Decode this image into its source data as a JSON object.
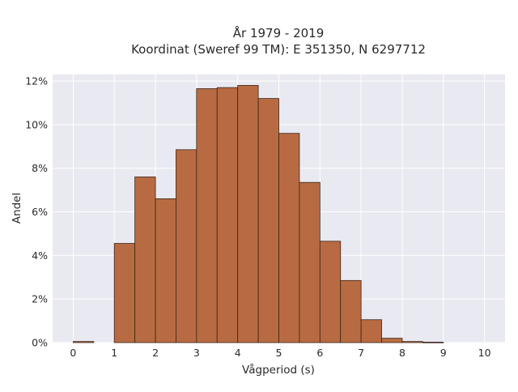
{
  "chart_data": {
    "type": "bar",
    "title_lines": [
      "År 1979 - 2019",
      "Koordinat (Sweref 99 TM): E 351350, N 6297712"
    ],
    "xlabel": "Vågperiod (s)",
    "ylabel": "Andel",
    "xlim": [
      -0.5,
      10.5
    ],
    "ylim": [
      0,
      12.3
    ],
    "x_ticks": [
      "0",
      "1",
      "2",
      "3",
      "4",
      "5",
      "6",
      "7",
      "8",
      "9",
      "10"
    ],
    "y_ticks": [
      "0%",
      "2%",
      "4%",
      "6%",
      "8%",
      "10%",
      "12%"
    ],
    "y_tick_values": [
      0,
      2,
      4,
      6,
      8,
      10,
      12
    ],
    "bin_width": 0.5,
    "bins": [
      {
        "start": 0.0,
        "end": 0.5,
        "value": 0.05
      },
      {
        "start": 0.5,
        "end": 1.0,
        "value": 0.0
      },
      {
        "start": 1.0,
        "end": 1.5,
        "value": 4.55
      },
      {
        "start": 1.5,
        "end": 2.0,
        "value": 7.6
      },
      {
        "start": 2.0,
        "end": 2.5,
        "value": 6.6
      },
      {
        "start": 2.5,
        "end": 3.0,
        "value": 8.85
      },
      {
        "start": 3.0,
        "end": 3.5,
        "value": 11.65
      },
      {
        "start": 3.5,
        "end": 4.0,
        "value": 11.7
      },
      {
        "start": 4.0,
        "end": 4.5,
        "value": 11.8
      },
      {
        "start": 4.5,
        "end": 5.0,
        "value": 11.2
      },
      {
        "start": 5.0,
        "end": 5.5,
        "value": 9.6
      },
      {
        "start": 5.5,
        "end": 6.0,
        "value": 7.35
      },
      {
        "start": 6.0,
        "end": 6.5,
        "value": 4.65
      },
      {
        "start": 6.5,
        "end": 7.0,
        "value": 2.85
      },
      {
        "start": 7.0,
        "end": 7.5,
        "value": 1.05
      },
      {
        "start": 7.5,
        "end": 8.0,
        "value": 0.2
      },
      {
        "start": 8.0,
        "end": 8.5,
        "value": 0.05
      },
      {
        "start": 8.5,
        "end": 9.0,
        "value": 0.02
      },
      {
        "start": 9.0,
        "end": 9.5,
        "value": 0.0
      },
      {
        "start": 9.5,
        "end": 10.0,
        "value": 0.0
      }
    ],
    "grid": true,
    "colors": {
      "bar_fill": "#b86b42",
      "bar_edge": "#3a2418",
      "plot_background": "#e9e9f1",
      "grid": "#ffffff"
    }
  }
}
